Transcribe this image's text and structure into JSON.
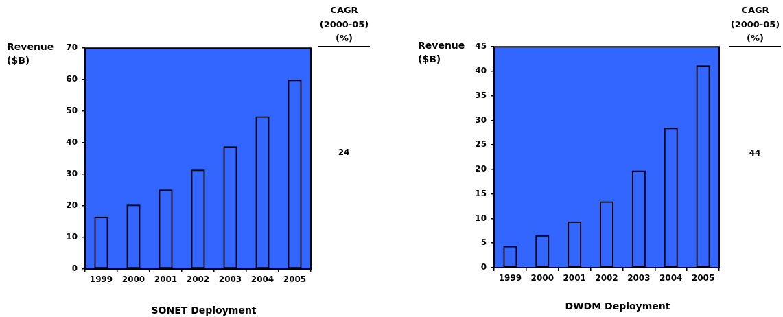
{
  "chart_data": [
    {
      "type": "bar",
      "categories": [
        "1999",
        "2000",
        "2001",
        "2002",
        "2003",
        "2004",
        "2005"
      ],
      "values": [
        16.6,
        20.4,
        25.2,
        31.5,
        38.9,
        48.4,
        60.0
      ],
      "color": "#000000",
      "ylabel": "Revenue ($B)",
      "xlabel": "SONET Deployment",
      "ylim": [
        0,
        70
      ],
      "yticks": [
        0,
        10,
        20,
        30,
        40,
        50,
        60,
        70
      ],
      "annotations": [
        "CAGR (2000-05) (%)",
        "24"
      ]
    },
    {
      "type": "bar",
      "categories": [
        "1999",
        "2000",
        "2001",
        "2002",
        "2003",
        "2004",
        "2005"
      ],
      "values": [
        4.4,
        6.6,
        9.4,
        13.5,
        19.8,
        28.5,
        41.2
      ],
      "color": "#000000",
      "ylabel": "Revenue ($B)",
      "xlabel": "DWDM Deployment",
      "ylim": [
        0,
        45
      ],
      "yticks": [
        0,
        5,
        10,
        15,
        20,
        25,
        30,
        35,
        40,
        45
      ],
      "annotations": [
        "CAGR (2000-05) (%)",
        "44"
      ]
    }
  ]
}
